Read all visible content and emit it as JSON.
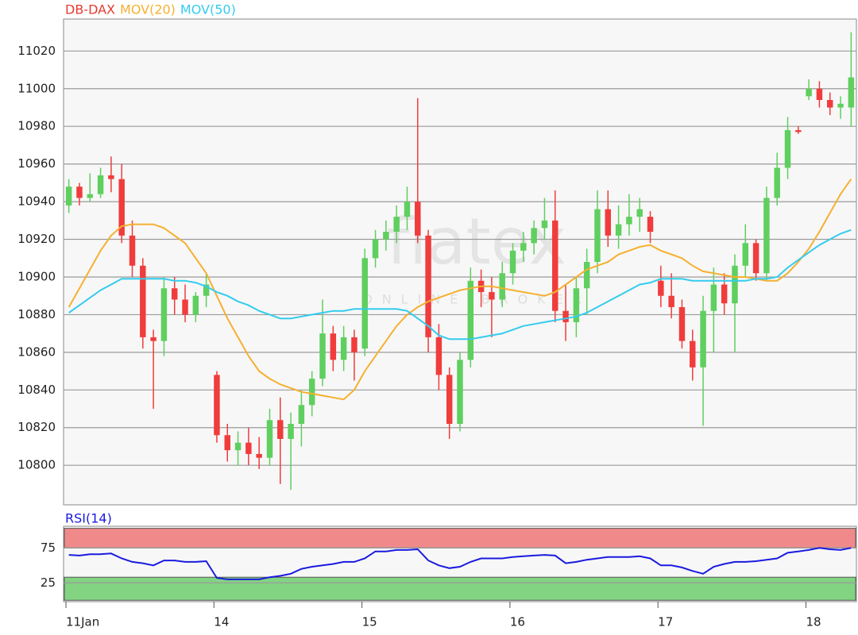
{
  "chart_data": [
    {
      "type": "candlestick",
      "watermark": "flatex",
      "watermark_sub": "ONLINE BROKER",
      "categories": [
        "11Jan",
        null,
        null,
        null,
        null,
        null,
        null,
        null,
        null,
        null,
        null,
        null,
        null,
        null,
        "14",
        null,
        null,
        null,
        null,
        null,
        null,
        null,
        null,
        null,
        null,
        null,
        null,
        null,
        "15",
        null,
        null,
        null,
        null,
        null,
        null,
        null,
        null,
        null,
        null,
        null,
        null,
        null,
        "16",
        null,
        null,
        null,
        null,
        null,
        null,
        null,
        null,
        null,
        null,
        null,
        null,
        null,
        "17",
        null,
        null,
        null,
        null,
        null,
        null,
        null,
        null,
        null,
        null,
        null,
        null,
        null,
        "18",
        null,
        null,
        null,
        null
      ],
      "ylim": [
        10779,
        11037
      ],
      "yticks": [
        10800,
        10820,
        10840,
        10860,
        10880,
        10900,
        10920,
        10940,
        10960,
        10980,
        11000,
        11020
      ],
      "grid": true,
      "series": [
        {
          "name": "DB-DAX",
          "color": "#e8392f",
          "up_color": "#5fcf5f",
          "down_color": "#f03c3c",
          "flat_color": "#2222aa",
          "open": [
            10938,
            10948,
            10942,
            10944,
            10954,
            10952,
            10922,
            10906,
            10868,
            10866,
            10894,
            10888,
            10880,
            10890,
            10848,
            10816,
            10808,
            10812,
            10806,
            10804,
            10824,
            10814,
            10822,
            10832,
            10846,
            10870,
            10856,
            10868,
            10862,
            10910,
            10920,
            10924,
            10932,
            10940,
            10922,
            10868,
            10848,
            10822,
            10856,
            10898,
            10892,
            10888,
            10902,
            10914,
            10918,
            10926,
            10930,
            10882,
            10876,
            10894,
            10908,
            10936,
            10922,
            10928,
            10932,
            10932,
            10898,
            10890,
            10884,
            10866,
            10852,
            10882,
            10896,
            10886,
            10906,
            10918,
            10902,
            10942,
            10958,
            10978,
            10996,
            11000,
            10994,
            10990,
            10990
          ],
          "high": [
            10952,
            10950,
            10955,
            10958,
            10964,
            10960,
            10930,
            10910,
            10872,
            10900,
            10900,
            10896,
            10892,
            10902,
            10850,
            10822,
            10818,
            10820,
            10815,
            10830,
            10836,
            10828,
            10840,
            10850,
            10888,
            10874,
            10874,
            10872,
            10915,
            10925,
            10930,
            10938,
            10948,
            10995,
            10925,
            10875,
            10852,
            10860,
            10905,
            10904,
            10900,
            10908,
            10918,
            10924,
            10930,
            10942,
            10946,
            10896,
            10900,
            10915,
            10946,
            10946,
            10938,
            10944,
            10942,
            10935,
            10906,
            10902,
            10888,
            10872,
            10890,
            10905,
            10902,
            10912,
            10928,
            10920,
            10948,
            10966,
            10985,
            10980,
            11005,
            11004,
            10998,
            10996,
            11030
          ],
          "low": [
            10934,
            10938,
            10940,
            10942,
            10945,
            10918,
            10900,
            10862,
            10830,
            10858,
            10880,
            10876,
            10876,
            10884,
            10812,
            10802,
            10800,
            10800,
            10798,
            10800,
            10790,
            10787,
            10810,
            10826,
            10842,
            10850,
            10850,
            10845,
            10858,
            10905,
            10914,
            10918,
            10925,
            10918,
            10860,
            10840,
            10814,
            10818,
            10852,
            10884,
            10868,
            10884,
            10896,
            10908,
            10912,
            10920,
            10876,
            10866,
            10868,
            10880,
            10902,
            10916,
            10915,
            10922,
            10924,
            10918,
            10884,
            10878,
            10862,
            10845,
            10821,
            10860,
            10880,
            10860,
            10900,
            10898,
            10898,
            10938,
            10952,
            10976,
            10994,
            10990,
            10986,
            10984,
            10980
          ],
          "close": [
            10948,
            10942,
            10944,
            10954,
            10952,
            10922,
            10906,
            10868,
            10866,
            10894,
            10888,
            10880,
            10890,
            10896,
            10816,
            10808,
            10812,
            10806,
            10804,
            10824,
            10814,
            10822,
            10832,
            10846,
            10870,
            10856,
            10868,
            10860,
            10910,
            10920,
            10924,
            10932,
            10940,
            10922,
            10868,
            10848,
            10822,
            10856,
            10898,
            10892,
            10888,
            10902,
            10914,
            10918,
            10926,
            10930,
            10882,
            10876,
            10894,
            10908,
            10936,
            10922,
            10928,
            10932,
            10936,
            10924,
            10890,
            10884,
            10866,
            10852,
            10882,
            10896,
            10886,
            10906,
            10918,
            10902,
            10942,
            10958,
            10978,
            10977,
            11000,
            10994,
            10990,
            10992,
            11006
          ]
        },
        {
          "name": "MOV(20)",
          "color": "#f5b030",
          "values": [
            10884,
            10894,
            10904,
            10914,
            10922,
            10927,
            10928,
            10928,
            10928,
            10926,
            10922,
            10918,
            10910,
            10902,
            10890,
            10878,
            10868,
            10858,
            10850,
            10846,
            10843,
            10841,
            10839,
            10838,
            10837,
            10836,
            10835,
            10840,
            10850,
            10858,
            10866,
            10874,
            10880,
            10884,
            10887,
            10889,
            10891,
            10893,
            10894,
            10895,
            10895,
            10894,
            10893,
            10892,
            10891,
            10890,
            10892,
            10896,
            10900,
            10904,
            10906,
            10908,
            10912,
            10914,
            10916,
            10917,
            10914,
            10912,
            10910,
            10906,
            10903,
            10902,
            10901,
            10900,
            10900,
            10899,
            10898,
            10898,
            10902,
            10908,
            10915,
            10924,
            10934,
            10944,
            10952
          ]
        },
        {
          "name": "MOV(50)",
          "color": "#33ccee",
          "values": [
            10881,
            10885,
            10889,
            10893,
            10896,
            10899,
            10899,
            10899,
            10899,
            10899,
            10898,
            10898,
            10897,
            10895,
            10892,
            10890,
            10887,
            10885,
            10882,
            10880,
            10878,
            10878,
            10879,
            10880,
            10881,
            10882,
            10882,
            10883,
            10883,
            10883,
            10883,
            10883,
            10882,
            10878,
            10874,
            10869,
            10867,
            10867,
            10867,
            10868,
            10869,
            10870,
            10872,
            10874,
            10875,
            10876,
            10877,
            10878,
            10879,
            10881,
            10884,
            10887,
            10890,
            10893,
            10896,
            10897,
            10899,
            10899,
            10899,
            10898,
            10898,
            10898,
            10898,
            10898,
            10898,
            10899,
            10899,
            10900,
            10905,
            10909,
            10913,
            10917,
            10920,
            10923,
            10925
          ]
        }
      ]
    },
    {
      "type": "line",
      "ylim": [
        -2,
        106
      ],
      "yticks": [
        25,
        75
      ],
      "grid": true,
      "bands": [
        {
          "range": [
            75,
            103
          ],
          "color": "#f08a8a"
        },
        {
          "range": [
            0,
            33
          ],
          "color": "#82d482"
        }
      ],
      "series": [
        {
          "name": "RSI(14)",
          "color": "#1a1ae0",
          "values": [
            65,
            64,
            66,
            66,
            67,
            60,
            55,
            53,
            50,
            57,
            57,
            55,
            55,
            56,
            32,
            30,
            30,
            30,
            30,
            33,
            35,
            38,
            45,
            48,
            50,
            52,
            55,
            55,
            60,
            70,
            70,
            72,
            72,
            73,
            57,
            50,
            46,
            48,
            55,
            60,
            60,
            60,
            62,
            63,
            64,
            65,
            64,
            53,
            55,
            58,
            60,
            62,
            62,
            62,
            63,
            60,
            50,
            50,
            47,
            42,
            38,
            48,
            52,
            55,
            55,
            56,
            58,
            60,
            68,
            70,
            72,
            75,
            73,
            72,
            75
          ]
        }
      ]
    }
  ]
}
